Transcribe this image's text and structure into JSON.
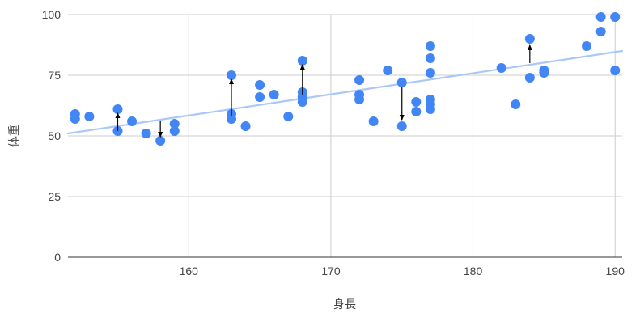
{
  "chart_data": {
    "type": "scatter",
    "title": "",
    "xlabel": "身長",
    "ylabel": "体重",
    "xlim": [
      151.5,
      190.5
    ],
    "ylim": [
      0,
      100
    ],
    "x_ticks": [
      160,
      170,
      180,
      190
    ],
    "y_ticks": [
      0,
      25,
      50,
      75,
      100
    ],
    "grid": true,
    "legend": "none",
    "colors": {
      "points": "#4285f4",
      "trendline": "#a9c8f7",
      "gridline": "#cccccc",
      "baseline": "#333333",
      "arrow": "#000000"
    },
    "points": [
      {
        "x": 152,
        "y": 59
      },
      {
        "x": 152,
        "y": 57
      },
      {
        "x": 153,
        "y": 58
      },
      {
        "x": 155,
        "y": 61
      },
      {
        "x": 155,
        "y": 52
      },
      {
        "x": 156,
        "y": 56
      },
      {
        "x": 157,
        "y": 51
      },
      {
        "x": 158,
        "y": 48
      },
      {
        "x": 159,
        "y": 55
      },
      {
        "x": 159,
        "y": 52
      },
      {
        "x": 163,
        "y": 75
      },
      {
        "x": 163,
        "y": 59
      },
      {
        "x": 163,
        "y": 57
      },
      {
        "x": 164,
        "y": 54
      },
      {
        "x": 165,
        "y": 71
      },
      {
        "x": 165,
        "y": 66
      },
      {
        "x": 166,
        "y": 67
      },
      {
        "x": 167,
        "y": 58
      },
      {
        "x": 168,
        "y": 81
      },
      {
        "x": 168,
        "y": 68
      },
      {
        "x": 168,
        "y": 66
      },
      {
        "x": 168,
        "y": 64
      },
      {
        "x": 172,
        "y": 73
      },
      {
        "x": 172,
        "y": 67
      },
      {
        "x": 172,
        "y": 65
      },
      {
        "x": 173,
        "y": 56
      },
      {
        "x": 174,
        "y": 77
      },
      {
        "x": 175,
        "y": 72
      },
      {
        "x": 175,
        "y": 54
      },
      {
        "x": 176,
        "y": 64
      },
      {
        "x": 176,
        "y": 60
      },
      {
        "x": 177,
        "y": 87
      },
      {
        "x": 177,
        "y": 82
      },
      {
        "x": 177,
        "y": 76
      },
      {
        "x": 177,
        "y": 65
      },
      {
        "x": 177,
        "y": 63
      },
      {
        "x": 177,
        "y": 61
      },
      {
        "x": 182,
        "y": 78
      },
      {
        "x": 183,
        "y": 63
      },
      {
        "x": 184,
        "y": 90
      },
      {
        "x": 184,
        "y": 74
      },
      {
        "x": 185,
        "y": 77
      },
      {
        "x": 185,
        "y": 76
      },
      {
        "x": 188,
        "y": 87
      },
      {
        "x": 189,
        "y": 99
      },
      {
        "x": 189,
        "y": 93
      },
      {
        "x": 190,
        "y": 99
      },
      {
        "x": 190,
        "y": 77
      }
    ],
    "trendline": {
      "x": [
        151.5,
        190.5
      ],
      "y": [
        51,
        85
      ]
    },
    "annotations": [
      {
        "type": "arrow",
        "x": 155,
        "from_y": 52,
        "to_y": 61
      },
      {
        "type": "arrow",
        "x": 158,
        "from_y": 56,
        "to_y": 48
      },
      {
        "type": "arrow",
        "x": 163,
        "from_y": 58,
        "to_y": 75
      },
      {
        "type": "arrow",
        "x": 168,
        "from_y": 67,
        "to_y": 81
      },
      {
        "type": "arrow",
        "x": 175,
        "from_y": 70,
        "to_y": 55
      },
      {
        "type": "arrow",
        "x": 184,
        "from_y": 80,
        "to_y": 89
      }
    ]
  }
}
